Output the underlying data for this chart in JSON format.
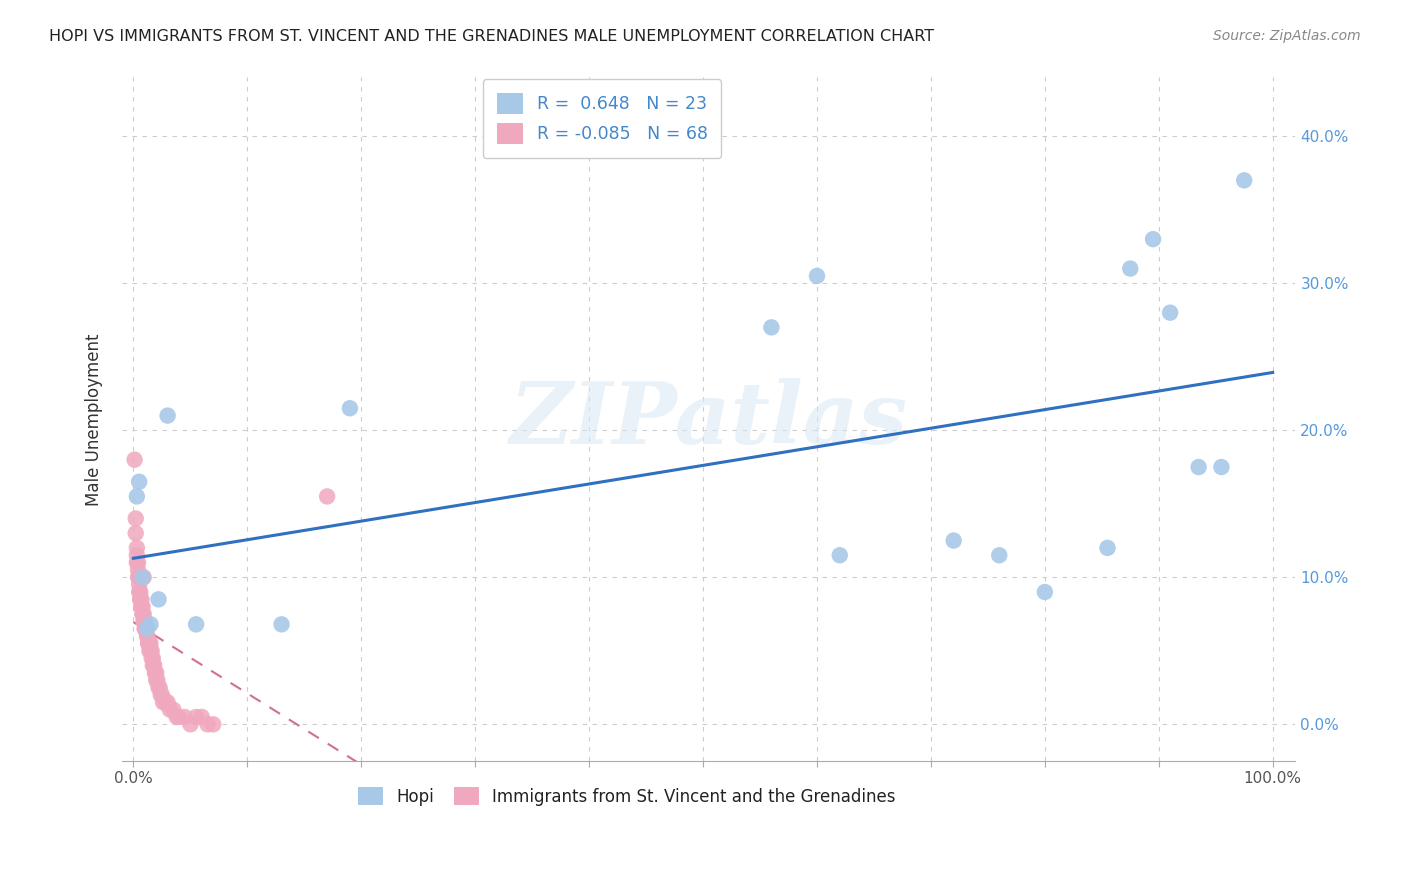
{
  "title": "HOPI VS IMMIGRANTS FROM ST. VINCENT AND THE GRENADINES MALE UNEMPLOYMENT CORRELATION CHART",
  "source": "Source: ZipAtlas.com",
  "ylabel": "Male Unemployment",
  "hopi_R": 0.648,
  "hopi_N": 23,
  "svg_R": -0.085,
  "svg_N": 68,
  "hopi_color": "#a8c8e8",
  "svg_color": "#f0a8be",
  "hopi_trend_color": "#3070c0",
  "svg_trend_color": "#d07090",
  "watermark": "ZIPatlas",
  "hopi_x": [
    0.003,
    0.005,
    0.008,
    0.012,
    0.015,
    0.022,
    0.03,
    0.055,
    0.13,
    0.19,
    0.56,
    0.6,
    0.62,
    0.72,
    0.76,
    0.8,
    0.855,
    0.875,
    0.895,
    0.91,
    0.935,
    0.955,
    0.975
  ],
  "hopi_y": [
    0.155,
    0.165,
    0.1,
    0.065,
    0.068,
    0.085,
    0.21,
    0.068,
    0.068,
    0.215,
    0.27,
    0.305,
    0.115,
    0.125,
    0.115,
    0.09,
    0.12,
    0.31,
    0.33,
    0.28,
    0.175,
    0.175,
    0.37
  ],
  "svg_x": [
    0.001,
    0.002,
    0.002,
    0.003,
    0.003,
    0.003,
    0.004,
    0.004,
    0.004,
    0.005,
    0.005,
    0.005,
    0.006,
    0.006,
    0.006,
    0.007,
    0.007,
    0.007,
    0.008,
    0.008,
    0.008,
    0.009,
    0.009,
    0.009,
    0.01,
    0.01,
    0.01,
    0.011,
    0.011,
    0.012,
    0.012,
    0.013,
    0.013,
    0.014,
    0.014,
    0.015,
    0.015,
    0.016,
    0.016,
    0.017,
    0.017,
    0.018,
    0.018,
    0.019,
    0.019,
    0.02,
    0.02,
    0.021,
    0.022,
    0.023,
    0.024,
    0.025,
    0.026,
    0.028,
    0.03,
    0.032,
    0.035,
    0.038,
    0.04,
    0.045,
    0.05,
    0.055,
    0.06,
    0.065,
    0.07,
    0.008,
    0.009,
    0.17
  ],
  "svg_y": [
    0.18,
    0.14,
    0.13,
    0.12,
    0.115,
    0.11,
    0.11,
    0.105,
    0.1,
    0.1,
    0.095,
    0.09,
    0.09,
    0.085,
    0.085,
    0.085,
    0.08,
    0.08,
    0.08,
    0.075,
    0.075,
    0.075,
    0.07,
    0.07,
    0.07,
    0.065,
    0.065,
    0.065,
    0.065,
    0.06,
    0.06,
    0.055,
    0.055,
    0.05,
    0.055,
    0.055,
    0.05,
    0.05,
    0.045,
    0.045,
    0.04,
    0.04,
    0.04,
    0.035,
    0.035,
    0.035,
    0.03,
    0.03,
    0.025,
    0.025,
    0.02,
    0.02,
    0.015,
    0.015,
    0.015,
    0.01,
    0.01,
    0.005,
    0.005,
    0.005,
    0.0,
    0.005,
    0.005,
    0.0,
    0.0,
    0.1,
    0.1,
    0.155
  ],
  "xlim": [
    -0.01,
    1.02
  ],
  "ylim": [
    -0.025,
    0.44
  ],
  "yticks": [
    0.0,
    0.1,
    0.2,
    0.3,
    0.4
  ],
  "xtick_positions": [
    0.0,
    0.1,
    0.2,
    0.3,
    0.4,
    0.5,
    0.6,
    0.7,
    0.8,
    0.9,
    1.0
  ],
  "background_color": "#ffffff",
  "grid_color": "#cccccc",
  "label_color_blue": "#4488cc",
  "label_color_right": "#5599dd"
}
